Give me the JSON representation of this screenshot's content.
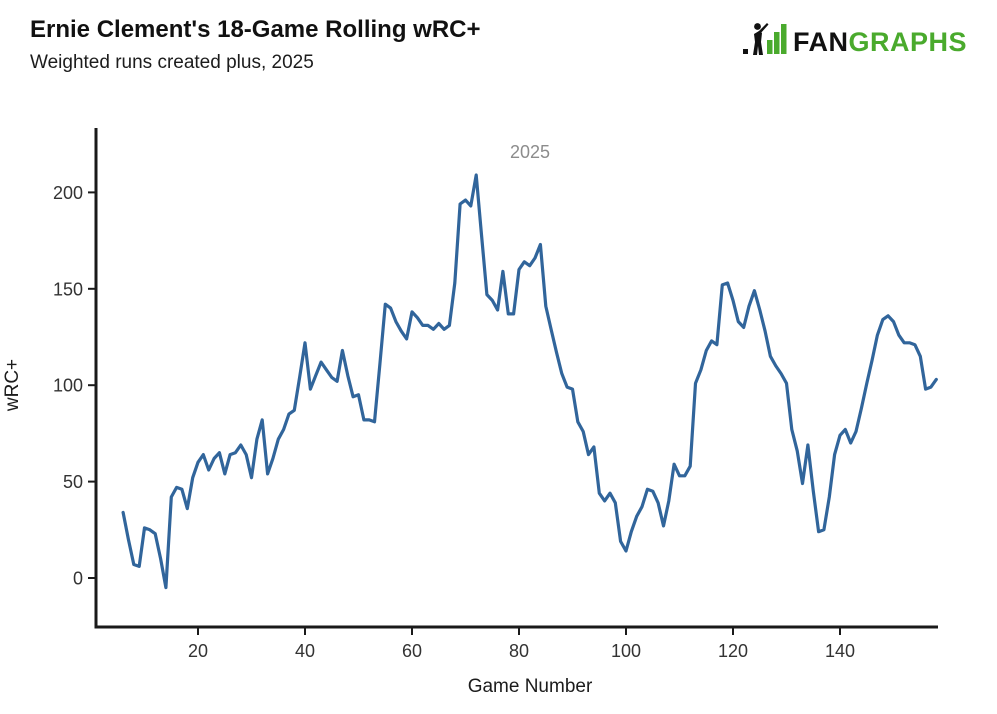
{
  "header": {
    "title": "Ernie Clement's 18-Game Rolling wRC+",
    "subtitle": "Weighted runs created plus, 2025"
  },
  "logo": {
    "text_black": "FAN",
    "text_green": "GRAPHS",
    "green": "#4aaa2d"
  },
  "colors": {
    "line": "#31659b",
    "axis": "#1a1a1a",
    "tick_text": "#333333",
    "annotation_gray": "#8c8c8c"
  },
  "chart_data": {
    "type": "line",
    "title": "Ernie Clement's 18-Game Rolling wRC+",
    "subtitle": "Weighted runs created plus, 2025",
    "xlabel": "Game Number",
    "ylabel": "wRC+",
    "annotation": "2025",
    "legend_position": "top-center-annotation",
    "grid": false,
    "x_ticks": [
      20,
      40,
      60,
      80,
      100,
      120,
      140
    ],
    "y_ticks": [
      0,
      50,
      100,
      150,
      200
    ],
    "xlim": [
      1,
      161
    ],
    "ylim": [
      -25,
      233
    ],
    "series": [
      {
        "name": "2025",
        "x_first": 6,
        "x_last": 158,
        "values": [
          34,
          20,
          7,
          6,
          26,
          25,
          23,
          10,
          -5,
          42,
          47,
          46,
          36,
          52,
          60,
          64,
          56,
          62,
          65,
          54,
          64,
          65,
          69,
          64,
          52,
          72,
          82,
          54,
          62,
          72,
          77,
          85,
          87,
          104,
          122,
          98,
          105,
          112,
          108,
          104,
          102,
          118,
          105,
          94,
          95,
          82,
          82,
          81,
          111,
          142,
          140,
          133,
          128,
          124,
          138,
          135,
          131,
          131,
          129,
          132,
          129,
          131,
          153,
          194,
          196,
          193,
          209,
          178,
          147,
          144,
          139,
          159,
          137,
          137,
          160,
          164,
          162,
          166,
          173,
          141,
          129,
          117,
          106,
          99,
          98,
          81,
          76,
          64,
          68,
          44,
          40,
          44,
          39,
          19,
          14,
          24,
          32,
          37,
          46,
          45,
          39,
          27,
          40,
          59,
          53,
          53,
          58,
          101,
          108,
          118,
          123,
          121,
          152,
          153,
          144,
          133,
          130,
          141,
          149,
          139,
          128,
          115,
          110,
          106,
          101,
          77,
          66,
          49,
          69,
          45,
          24,
          25,
          42,
          64,
          74,
          77,
          70,
          76,
          88,
          101,
          113,
          126,
          134,
          136,
          133,
          126,
          122,
          122,
          121,
          115,
          98,
          99,
          103
        ]
      }
    ]
  }
}
